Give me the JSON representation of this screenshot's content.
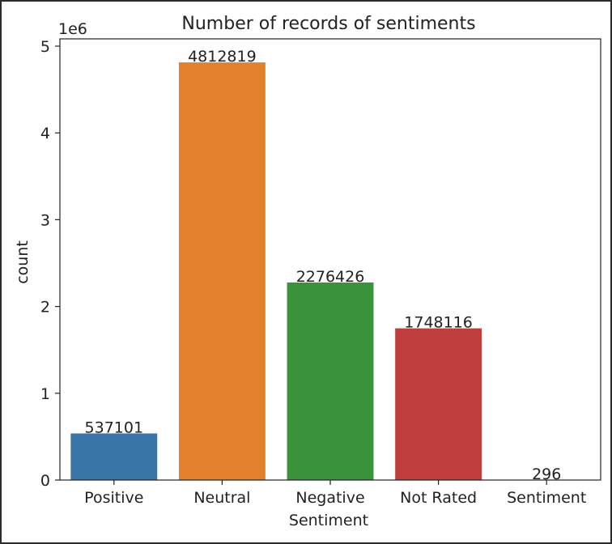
{
  "chart_data": {
    "type": "bar",
    "title": "Number of records of sentiments",
    "xlabel": "Sentiment",
    "ylabel": "count",
    "y_offset_label": "1e6",
    "categories": [
      "Positive",
      "Neutral",
      "Negative",
      "Not Rated",
      "Sentiment"
    ],
    "values": [
      537101,
      4812819,
      2276426,
      1748116,
      296
    ],
    "data_labels": [
      "537101",
      "4812819",
      "2276426",
      "1748116",
      "296"
    ],
    "colors": [
      "#3a75a8",
      "#e1812c",
      "#3a923a",
      "#c03d3e",
      "#9372b2"
    ],
    "ylim": [
      0,
      5000000
    ],
    "y_ticks": [
      0,
      1000000,
      2000000,
      3000000,
      4000000,
      5000000
    ],
    "y_tick_labels": [
      "0",
      "1",
      "2",
      "3",
      "4",
      "5"
    ],
    "grid": false,
    "legend": "none"
  }
}
